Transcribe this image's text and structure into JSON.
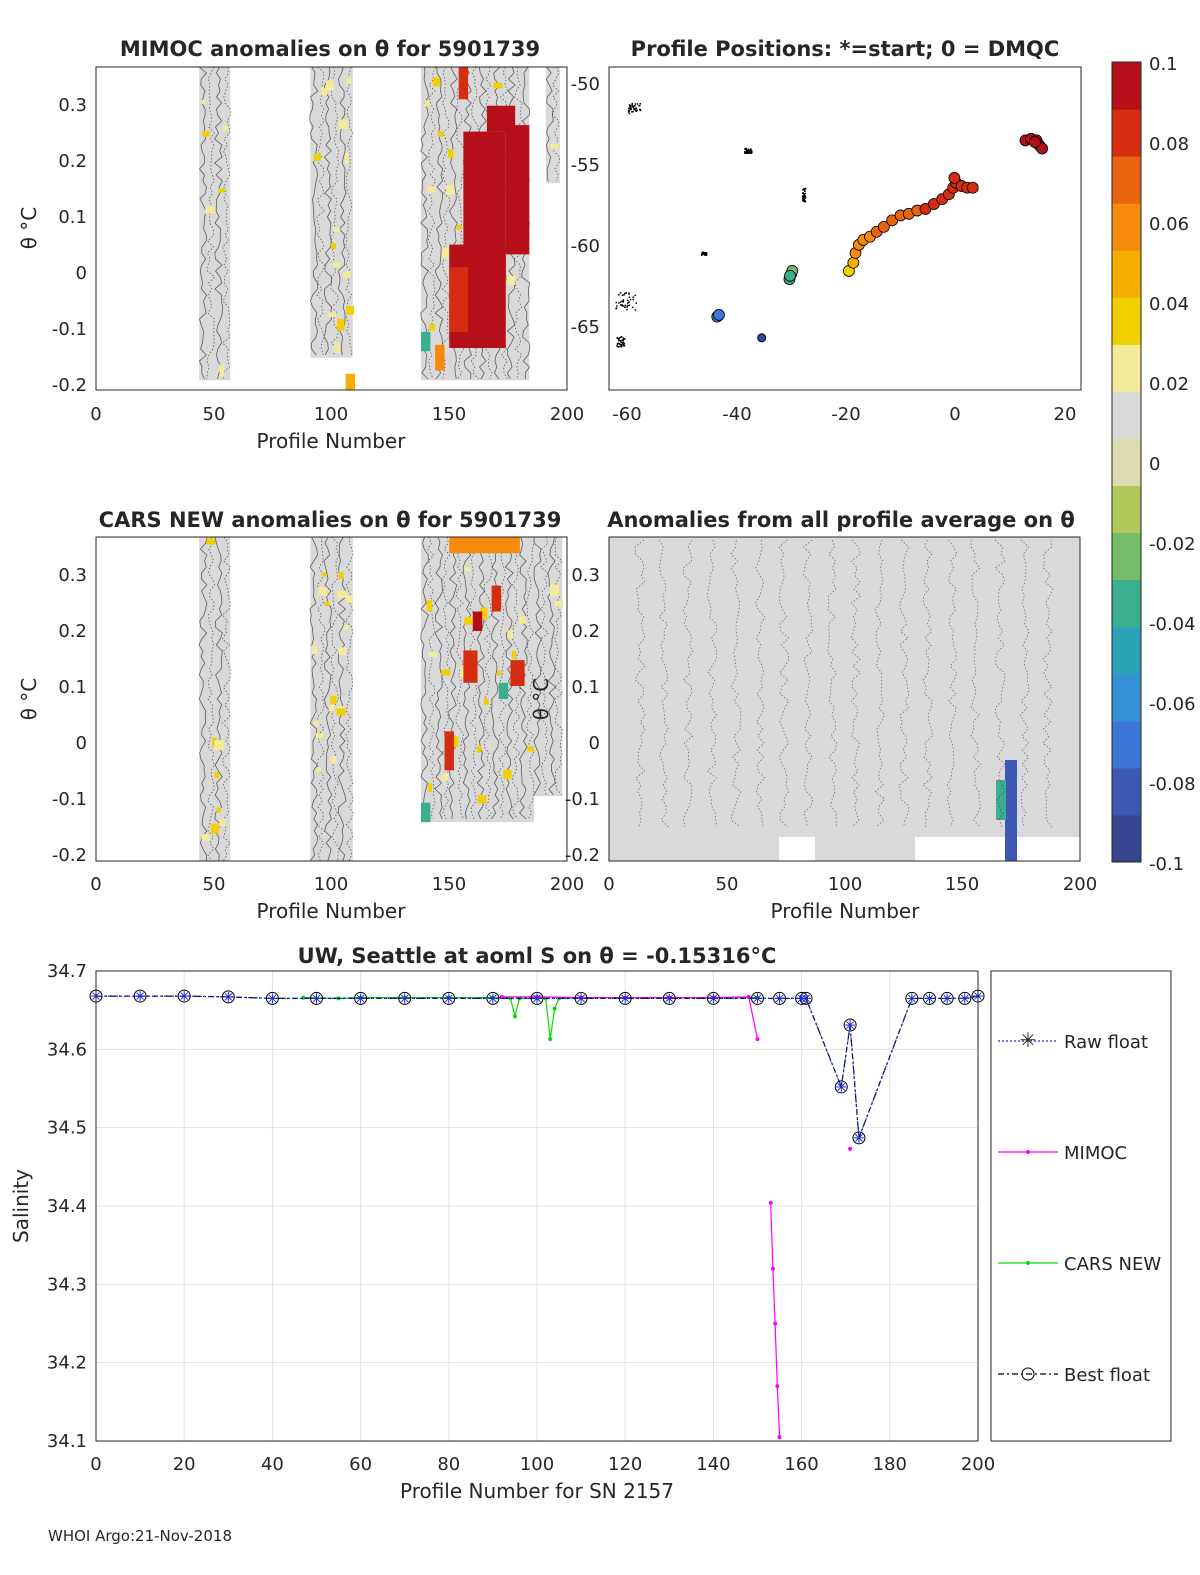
{
  "colors": {
    "raw": "#1f2fd6",
    "mimoc": "#ff00ff",
    "cars": "#00dd00",
    "best": "#000000",
    "bg_gray": "#d9d9d9"
  },
  "colormap": [
    "#35458f",
    "#3d58b3",
    "#3d75d8",
    "#3591d4",
    "#2aa3b7",
    "#3aaf8e",
    "#74bc67",
    "#b0c95a",
    "#dcdcb0",
    "#d9d9d9",
    "#f3ea9a",
    "#f0d000",
    "#f5ad00",
    "#f58a0c",
    "#e86410",
    "#d62d12",
    "#b5101a"
  ],
  "footer": "WHOI Argo:21-Nov-2018",
  "panel1": {
    "title": "MIMOC anomalies on θ  for 5901739",
    "ylabel": "θ °C",
    "xlabel": "Profile Number",
    "xticks": [
      "0",
      "50",
      "100",
      "150",
      "200"
    ],
    "yticks": [
      "0.3",
      "0.2",
      "0.1",
      "0",
      "-0.1",
      "-0.2"
    ],
    "xlim": [
      0,
      200
    ],
    "ylim": [
      -0.21,
      0.36
    ]
  },
  "panel2": {
    "title": "Profile Positions: *=start; 0 = DMQC",
    "xticks": [
      "-60",
      "-40",
      "-20",
      "0",
      "20"
    ],
    "yticks": [
      "-50",
      "-55",
      "-60",
      "-65"
    ],
    "xlim": [
      -62,
      23
    ],
    "ylim": [
      -69,
      -49.2
    ],
    "track": [
      [
        -34.5,
        -65.8,
        -0.1
      ],
      [
        -42.5,
        -64.5,
        -0.065
      ],
      [
        -42.2,
        -64.4,
        -0.07
      ],
      [
        -29.5,
        -62.2,
        -0.03
      ],
      [
        -29.2,
        -61.9,
        -0.025
      ],
      [
        -29.0,
        -61.7,
        -0.02
      ],
      [
        -29.4,
        -62.0,
        -0.03
      ],
      [
        -18.8,
        -61.7,
        0.04
      ],
      [
        -18.0,
        -61.2,
        0.05
      ],
      [
        -17.6,
        -60.6,
        0.055
      ],
      [
        -17.0,
        -60.1,
        0.06
      ],
      [
        -16.2,
        -59.8,
        0.06
      ],
      [
        -15.0,
        -59.6,
        0.062
      ],
      [
        -13.8,
        -59.3,
        0.065
      ],
      [
        -12.5,
        -59.0,
        0.068
      ],
      [
        -11.0,
        -58.6,
        0.07
      ],
      [
        -9.5,
        -58.3,
        0.072
      ],
      [
        -8.0,
        -58.2,
        0.074
      ],
      [
        -6.5,
        -58.0,
        0.075
      ],
      [
        -5.0,
        -57.9,
        0.077
      ],
      [
        -3.5,
        -57.6,
        0.078
      ],
      [
        -2.0,
        -57.3,
        0.08
      ],
      [
        -0.8,
        -57.0,
        0.082
      ],
      [
        0.0,
        -56.6,
        0.083
      ],
      [
        0.5,
        -56.3,
        0.084
      ],
      [
        1.5,
        -56.5,
        0.085
      ],
      [
        2.5,
        -56.6,
        0.087
      ],
      [
        3.5,
        -56.6,
        0.088
      ],
      [
        0.2,
        -56.0,
        0.085
      ],
      [
        13.0,
        -53.7,
        0.095
      ],
      [
        14.0,
        -53.6,
        0.096
      ],
      [
        15.0,
        -53.7,
        0.097
      ],
      [
        15.5,
        -54.0,
        0.098
      ],
      [
        16.0,
        -54.2,
        0.1
      ],
      [
        14.7,
        -53.8,
        0.098
      ]
    ]
  },
  "panel3": {
    "title": "CARS NEW anomalies on θ for 5901739",
    "ylabel": "θ °C",
    "xlabel": "Profile Number",
    "xticks": [
      "0",
      "50",
      "100",
      "150",
      "200"
    ],
    "yticks": [
      "0.3",
      "0.2",
      "0.1",
      "0",
      "-0.1",
      "-0.2"
    ]
  },
  "panel4": {
    "title": "Anomalies from all profile average on θ",
    "ylabel": "θ °C",
    "xlabel": "Profile Number",
    "xticks": [
      "0",
      "50",
      "100",
      "150",
      "200"
    ],
    "yticks": [
      "0.3",
      "0.2",
      "0.1",
      "0",
      "-0.1",
      "-0.2"
    ]
  },
  "colorbar": {
    "ticks": [
      "0.1",
      "0.08",
      "0.06",
      "0.04",
      "0.02",
      "0",
      "-0.02",
      "-0.04",
      "-0.06",
      "-0.08",
      "-0.1"
    ],
    "range": [
      -0.1,
      0.1
    ]
  },
  "chart_data": {
    "type": "line",
    "title": "UW, Seattle at aoml S on θ = -0.15316°C",
    "xlabel": "Profile Number for SN 2157",
    "ylabel": "Salinity",
    "xlim": [
      0,
      200
    ],
    "ylim": [
      34.1,
      34.7
    ],
    "xticks": [
      "0",
      "20",
      "40",
      "60",
      "80",
      "100",
      "120",
      "140",
      "160",
      "180",
      "200"
    ],
    "yticks": [
      "34.7",
      "34.6",
      "34.5",
      "34.4",
      "34.3",
      "34.2",
      "34.1"
    ],
    "grid": true,
    "legend_position": "outside-right",
    "legend": [
      "Raw float",
      "MIMOC",
      "CARS NEW",
      "Best float"
    ],
    "series": [
      {
        "name": "Raw float",
        "x": [
          0,
          10,
          20,
          30,
          40,
          50,
          60,
          70,
          80,
          90,
          100,
          110,
          120,
          130,
          140,
          150,
          155,
          160,
          161,
          169,
          171,
          173,
          185,
          189,
          193,
          197,
          200
        ],
        "values": [
          34.668,
          34.668,
          34.668,
          34.667,
          34.665,
          34.665,
          34.665,
          34.665,
          34.665,
          34.665,
          34.665,
          34.665,
          34.665,
          34.665,
          34.665,
          34.665,
          34.665,
          34.665,
          34.665,
          34.552,
          34.631,
          34.487,
          34.665,
          34.665,
          34.665,
          34.665,
          34.668
        ]
      },
      {
        "name": "MIMOC",
        "x": [
          92,
          100,
          110,
          120,
          130,
          140,
          148,
          150,
          null,
          153,
          153.5,
          154,
          154.5,
          155,
          null,
          171
        ],
        "values": [
          34.667,
          34.667,
          34.666,
          34.666,
          34.666,
          34.666,
          34.667,
          34.613,
          null,
          34.404,
          34.32,
          34.25,
          34.17,
          34.105,
          null,
          34.473
        ]
      },
      {
        "name": "CARS NEW",
        "x": [
          47,
          55,
          60,
          70,
          80,
          90,
          94,
          95,
          96,
          100,
          102,
          103,
          104,
          105,
          110,
          120,
          130,
          140,
          150
        ],
        "values": [
          34.666,
          34.665,
          34.666,
          34.666,
          34.666,
          34.666,
          34.665,
          34.642,
          34.665,
          34.665,
          34.665,
          34.613,
          34.652,
          34.665,
          34.666,
          34.666,
          34.666,
          34.666,
          34.666
        ]
      },
      {
        "name": "Best float",
        "x": [
          0,
          10,
          20,
          30,
          40,
          50,
          60,
          70,
          80,
          90,
          100,
          110,
          120,
          130,
          140,
          150,
          155,
          160,
          161,
          169,
          171,
          173,
          185,
          189,
          193,
          197,
          200
        ],
        "values": [
          34.668,
          34.668,
          34.668,
          34.667,
          34.665,
          34.665,
          34.665,
          34.665,
          34.665,
          34.665,
          34.665,
          34.665,
          34.665,
          34.665,
          34.665,
          34.665,
          34.665,
          34.665,
          34.665,
          34.552,
          34.631,
          34.487,
          34.665,
          34.665,
          34.665,
          34.665,
          34.668
        ]
      }
    ]
  }
}
